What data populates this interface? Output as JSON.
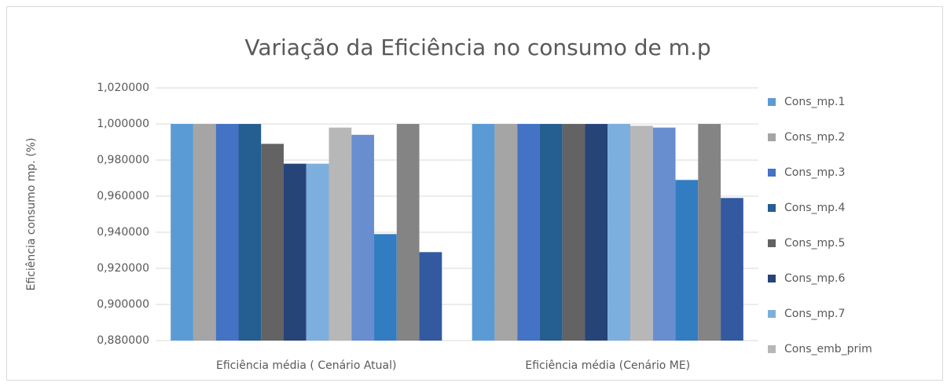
{
  "chart_data": {
    "type": "bar",
    "title": "Variação da Eficiência no consumo de m.p",
    "y_label": "Eficiência consumo mp. (%)",
    "categories": [
      "Eficiência média ( Cenário Atual)",
      "Eficiência média (Cenário ME)"
    ],
    "series": [
      {
        "name": "Cons_mp.1",
        "color": "#5b9bd5",
        "values": [
          1.0,
          1.0
        ]
      },
      {
        "name": "Cons_mp.2",
        "color": "#a5a5a5",
        "values": [
          1.0,
          1.0
        ]
      },
      {
        "name": "Cons_mp.3",
        "color": "#4472c4",
        "values": [
          1.0,
          1.0
        ]
      },
      {
        "name": "Cons_mp.4",
        "color": "#255e91",
        "values": [
          1.0,
          1.0
        ]
      },
      {
        "name": "Cons_mp.5",
        "color": "#636363",
        "values": [
          0.989,
          1.0
        ]
      },
      {
        "name": "Cons_mp.6",
        "color": "#264478",
        "values": [
          0.978,
          1.0
        ]
      },
      {
        "name": "Cons_mp.7",
        "color": "#7cafdd",
        "values": [
          0.978,
          1.0
        ]
      },
      {
        "name": "Cons_emb_prim",
        "color": "#b7b7b7",
        "values": [
          0.998,
          0.999
        ]
      },
      {
        "color": "#698ed0",
        "values": [
          0.994,
          0.998
        ]
      },
      {
        "color": "#327dc2",
        "values": [
          0.939,
          0.969
        ]
      },
      {
        "color": "#848484",
        "values": [
          1.0,
          1.0
        ]
      },
      {
        "color": "#335aa1",
        "values": [
          0.929,
          0.959
        ]
      }
    ],
    "ylim": [
      0.88,
      1.02
    ],
    "yticks": [
      {
        "value": 0.88,
        "label": "0,880000"
      },
      {
        "value": 0.9,
        "label": "0,900000"
      },
      {
        "value": 0.92,
        "label": "0,920000"
      },
      {
        "value": 0.94,
        "label": "0,940000"
      },
      {
        "value": 0.96,
        "label": "0,960000"
      },
      {
        "value": 0.98,
        "label": "0,980000"
      },
      {
        "value": 1.0,
        "label": "1,000000"
      },
      {
        "value": 1.02,
        "label": "1,020000"
      }
    ],
    "grid": true,
    "legend": "right"
  }
}
